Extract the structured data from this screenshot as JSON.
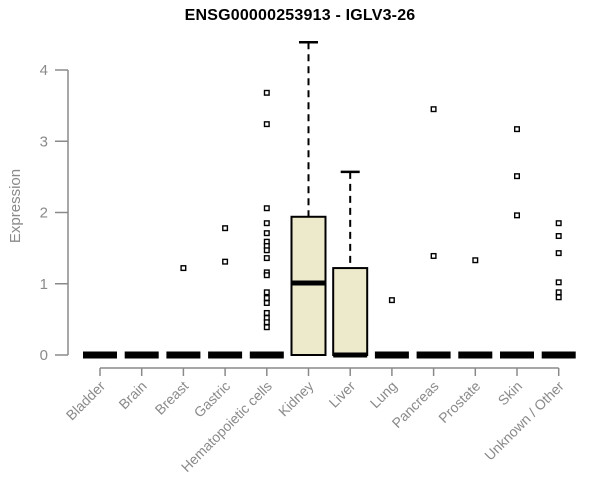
{
  "chart_data": {
    "type": "boxplot",
    "title": "ENSG00000253913 - IGLV3-26",
    "xlabel": "",
    "ylabel": "Expression",
    "ylim": [
      0,
      4
    ],
    "yticks": [
      0,
      1,
      2,
      3,
      4
    ],
    "grid": false,
    "legend": "none",
    "categories": [
      "Bladder",
      "Brain",
      "Breast",
      "Gastric",
      "Hematopoietic cells",
      "Kidney",
      "Liver",
      "Lung",
      "Pancreas",
      "Prostate",
      "Skin",
      "Unknown / Other"
    ],
    "boxes": [
      {
        "category": "Bladder",
        "q1": 0,
        "median": 0,
        "q3": 0,
        "whisker_low": 0,
        "whisker_high": 0,
        "outliers": []
      },
      {
        "category": "Brain",
        "q1": 0,
        "median": 0,
        "q3": 0,
        "whisker_low": 0,
        "whisker_high": 0,
        "outliers": []
      },
      {
        "category": "Breast",
        "q1": 0,
        "median": 0,
        "q3": 0,
        "whisker_low": 0,
        "whisker_high": 0,
        "outliers": [
          1.22
        ]
      },
      {
        "category": "Gastric",
        "q1": 0,
        "median": 0,
        "q3": 0,
        "whisker_low": 0,
        "whisker_high": 0,
        "outliers": [
          1.78,
          1.31
        ]
      },
      {
        "category": "Hematopoietic cells",
        "q1": 0,
        "median": 0,
        "q3": 0,
        "whisker_low": 0,
        "whisker_high": 0,
        "outliers": [
          3.68,
          3.24,
          2.06,
          1.85,
          1.71,
          1.59,
          1.53,
          1.47,
          1.36,
          1.16,
          1.12,
          0.88,
          0.8,
          0.73,
          0.59,
          0.52,
          0.46,
          0.39
        ]
      },
      {
        "category": "Kidney",
        "q1": 0,
        "median": 1.01,
        "q3": 1.94,
        "whisker_low": 0,
        "whisker_high": 4.39,
        "outliers": []
      },
      {
        "category": "Liver",
        "q1": 0,
        "median": 0,
        "q3": 1.22,
        "whisker_low": 0,
        "whisker_high": 2.57,
        "outliers": []
      },
      {
        "category": "Lung",
        "q1": 0,
        "median": 0,
        "q3": 0,
        "whisker_low": 0,
        "whisker_high": 0,
        "outliers": [
          0.77
        ]
      },
      {
        "category": "Pancreas",
        "q1": 0,
        "median": 0,
        "q3": 0,
        "whisker_low": 0,
        "whisker_high": 0,
        "outliers": [
          3.45,
          1.39
        ]
      },
      {
        "category": "Prostate",
        "q1": 0,
        "median": 0,
        "q3": 0,
        "whisker_low": 0,
        "whisker_high": 0,
        "outliers": [
          1.33
        ]
      },
      {
        "category": "Skin",
        "q1": 0,
        "median": 0,
        "q3": 0,
        "whisker_low": 0,
        "whisker_high": 0,
        "outliers": [
          3.17,
          2.51,
          1.96
        ]
      },
      {
        "category": "Unknown / Other",
        "q1": 0,
        "median": 0,
        "q3": 0,
        "whisker_low": 0,
        "whisker_high": 0,
        "outliers": [
          1.85,
          1.67,
          1.43,
          1.02,
          0.88,
          0.81
        ]
      }
    ],
    "colors": {
      "box_fill": "#EDE9CB",
      "box_border": "#000000",
      "median": "#000000",
      "whisker": "#000000",
      "outlier_fill": "#ffffff",
      "outlier_border": "#000000",
      "axis": "#8a8a8a",
      "tick_label": "#8a8a8a",
      "title": "#000000",
      "background": "#ffffff"
    }
  }
}
